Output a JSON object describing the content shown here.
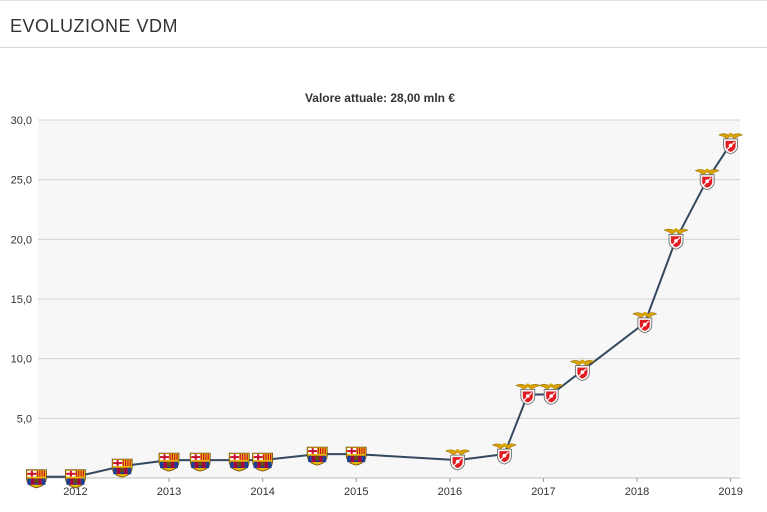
{
  "header": {
    "title": "EVOLUZIONE VDM"
  },
  "chart_data": {
    "type": "line",
    "title": "Valore attuale: 28,00 mln €",
    "xlabel": "",
    "ylabel": "",
    "ylim": [
      0,
      30
    ],
    "xlim": [
      2011.6,
      2019.1
    ],
    "grid": true,
    "legend": "none",
    "yticks": [
      "5,0",
      "10,0",
      "15,0",
      "20,0",
      "25,0",
      "30,0"
    ],
    "xticks": [
      "2012",
      "2013",
      "2014",
      "2015",
      "2016",
      "2017",
      "2018",
      "2019"
    ],
    "colors": {
      "line": "#34495e",
      "plot_bg": "#f7f7f7",
      "grid": "#d4d4d4",
      "barcelona_blue": "#1c3f94",
      "barcelona_red": "#a50044",
      "barcelona_gold": "#edbb00",
      "benfica_red": "#e11b22",
      "benfica_gold": "#d9a300"
    },
    "series": [
      {
        "club_icons": [
          "barcelona-crest-icon",
          "benfica-crest-icon"
        ],
        "points": [
          {
            "x": "2011-08",
            "y": 0.1,
            "club": "barcelona"
          },
          {
            "x": "2012-01",
            "y": 0.1,
            "club": "barcelona"
          },
          {
            "x": "2012-07",
            "y": 1.0,
            "club": "barcelona"
          },
          {
            "x": "2013-01",
            "y": 1.5,
            "club": "barcelona"
          },
          {
            "x": "2013-05",
            "y": 1.5,
            "club": "barcelona"
          },
          {
            "x": "2013-10",
            "y": 1.5,
            "club": "barcelona"
          },
          {
            "x": "2014-01",
            "y": 1.5,
            "club": "barcelona"
          },
          {
            "x": "2014-08",
            "y": 2.0,
            "club": "barcelona"
          },
          {
            "x": "2015-01",
            "y": 2.0,
            "club": "barcelona"
          },
          {
            "x": "2016-02",
            "y": 1.5,
            "club": "benfica"
          },
          {
            "x": "2016-08",
            "y": 2.0,
            "club": "benfica"
          },
          {
            "x": "2016-11",
            "y": 7.0,
            "club": "benfica"
          },
          {
            "x": "2017-02",
            "y": 7.0,
            "club": "benfica"
          },
          {
            "x": "2017-06",
            "y": 9.0,
            "club": "benfica"
          },
          {
            "x": "2018-02",
            "y": 13.0,
            "club": "benfica"
          },
          {
            "x": "2018-06",
            "y": 20.0,
            "club": "benfica"
          },
          {
            "x": "2018-10",
            "y": 25.0,
            "club": "benfica"
          },
          {
            "x": "2019-01",
            "y": 28.0,
            "club": "benfica"
          }
        ]
      }
    ]
  }
}
